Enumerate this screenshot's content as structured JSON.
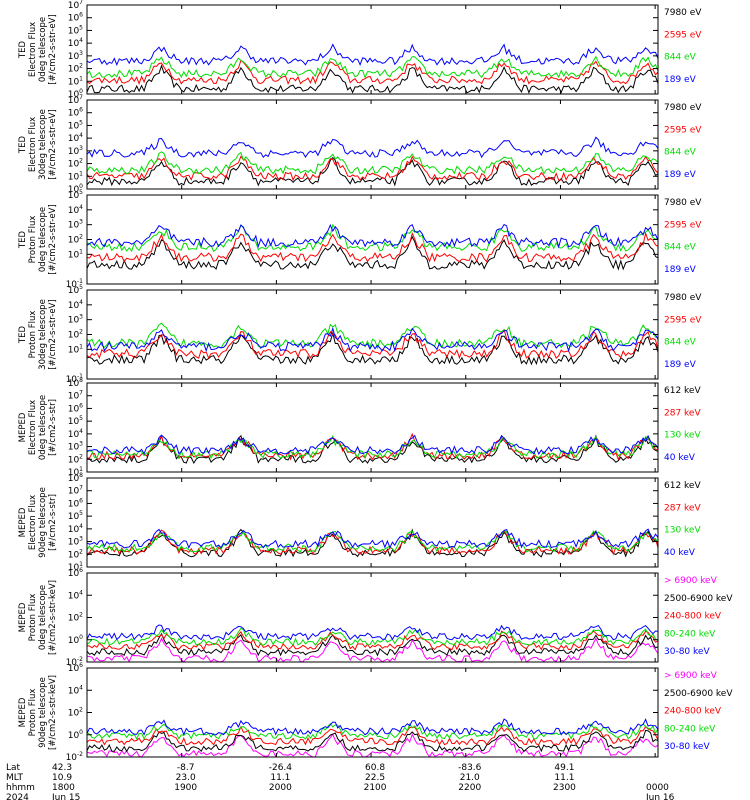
{
  "chart_data": {
    "type": "line",
    "time_axis": {
      "start": "1800",
      "end": "0000",
      "ticks": [
        "1800",
        "1900",
        "2000",
        "2100",
        "2200",
        "2300",
        "0000"
      ],
      "rows": [
        {
          "label": "Lat",
          "values": [
            "42.3",
            "-8.7",
            "-26.4",
            "60.8",
            "-83.6",
            "49.1",
            ""
          ]
        },
        {
          "label": "MLT",
          "values": [
            "10.9",
            "23.0",
            "11.1",
            "22.5",
            "21.0",
            "11.1",
            ""
          ]
        },
        {
          "label": "hhmm",
          "values": [
            "1800",
            "1900",
            "2000",
            "2100",
            "2200",
            "2300",
            "0000"
          ]
        },
        {
          "label": "2024",
          "values": [
            "Jun 15",
            "",
            "",
            "",
            "",
            "",
            "Jun 16"
          ]
        }
      ]
    },
    "panels": [
      {
        "ylabel": [
          "TED",
          "Electron Flux",
          "0deg telescope",
          "[#/cm2-s-str-eV]"
        ],
        "ylog": true,
        "ylim_exp": [
          0,
          7
        ],
        "yticks": [
          {
            "e": 0,
            "t": "10"
          },
          {
            "e": 1,
            "t": "10"
          },
          {
            "e": 2,
            "t": "10"
          },
          {
            "e": 3,
            "t": "10"
          },
          {
            "e": 4,
            "t": "10"
          },
          {
            "e": 5,
            "t": "10"
          },
          {
            "e": 6,
            "t": "10"
          },
          {
            "e": 7,
            "t": "10"
          }
        ],
        "series": [
          {
            "name": "7980 eV",
            "color": "#000000",
            "level": 0.4
          },
          {
            "name": "2595 eV",
            "color": "#ff0000",
            "level": 1.1
          },
          {
            "name": "844 eV",
            "color": "#00dd00",
            "level": 1.6
          },
          {
            "name": "189 eV",
            "color": "#0000ff",
            "level": 2.6
          }
        ]
      },
      {
        "ylabel": [
          "TED",
          "Electron Flux",
          "30deg telescope",
          "[#/cm2-s-str-eV]"
        ],
        "ylog": true,
        "ylim_exp": [
          0,
          7
        ],
        "yticks": [
          {
            "e": 0,
            "t": "10"
          },
          {
            "e": 1,
            "t": "10"
          },
          {
            "e": 2,
            "t": "10"
          },
          {
            "e": 3,
            "t": "10"
          },
          {
            "e": 4,
            "t": "10"
          },
          {
            "e": 5,
            "t": "10"
          },
          {
            "e": 6,
            "t": "10"
          },
          {
            "e": 7,
            "t": "10"
          }
        ],
        "series": [
          {
            "name": "7980 eV",
            "color": "#000000",
            "level": 0.6
          },
          {
            "name": "2595 eV",
            "color": "#ff0000",
            "level": 1.0
          },
          {
            "name": "844 eV",
            "color": "#00dd00",
            "level": 1.5
          },
          {
            "name": "189 eV",
            "color": "#0000ff",
            "level": 2.8
          }
        ]
      },
      {
        "ylabel": [
          "TED",
          "Proton Flux",
          "0deg telescope",
          "[#/cm2-s-str-eV]"
        ],
        "ylog": true,
        "ylim_exp": [
          -1,
          5
        ],
        "yticks": [
          {
            "e": -1,
            "t": "10"
          },
          {
            "e": 1,
            "t": "10"
          },
          {
            "e": 2,
            "t": "10"
          },
          {
            "e": 3,
            "t": "10"
          },
          {
            "e": 4,
            "t": "10"
          },
          {
            "e": 5,
            "t": "10"
          }
        ],
        "series": [
          {
            "name": "7980 eV",
            "color": "#000000",
            "level": 0.3
          },
          {
            "name": "2595 eV",
            "color": "#ff0000",
            "level": 0.8
          },
          {
            "name": "844 eV",
            "color": "#00dd00",
            "level": 1.5
          },
          {
            "name": "189 eV",
            "color": "#0000ff",
            "level": 1.8
          }
        ]
      },
      {
        "ylabel": [
          "TED",
          "Proton Flux",
          "30deg telescope",
          "[#/cm2-s-str-eV]"
        ],
        "ylog": true,
        "ylim_exp": [
          -1,
          5
        ],
        "yticks": [
          {
            "e": -1,
            "t": "10"
          },
          {
            "e": 1,
            "t": "10"
          },
          {
            "e": 2,
            "t": "10"
          },
          {
            "e": 3,
            "t": "10"
          },
          {
            "e": 4,
            "t": "10"
          },
          {
            "e": 5,
            "t": "10"
          }
        ],
        "series": [
          {
            "name": "7980 eV",
            "color": "#000000",
            "level": 0.3
          },
          {
            "name": "2595 eV",
            "color": "#ff0000",
            "level": 0.7
          },
          {
            "name": "844 eV",
            "color": "#00dd00",
            "level": 1.4
          },
          {
            "name": "189 eV",
            "color": "#0000ff",
            "level": 1.2
          }
        ]
      },
      {
        "ylabel": [
          "MEPED",
          "Electron Flux",
          "0deg telescope",
          "[#/cm2-s-str]"
        ],
        "ylog": true,
        "ylim_exp": [
          1,
          8
        ],
        "yticks": [
          {
            "e": 1,
            "t": "10"
          },
          {
            "e": 2,
            "t": "10"
          },
          {
            "e": 3,
            "t": "10"
          },
          {
            "e": 4,
            "t": "10"
          },
          {
            "e": 5,
            "t": "10"
          },
          {
            "e": 6,
            "t": "10"
          },
          {
            "e": 7,
            "t": "10"
          },
          {
            "e": 8,
            "t": "10"
          }
        ],
        "series": [
          {
            "name": "612 keV",
            "color": "#000000",
            "level": 2.0
          },
          {
            "name": "287 keV",
            "color": "#ff0000",
            "level": 2.3
          },
          {
            "name": "130 keV",
            "color": "#00dd00",
            "level": 2.4
          },
          {
            "name": "40 keV",
            "color": "#0000ff",
            "level": 2.7
          }
        ]
      },
      {
        "ylabel": [
          "MEPED",
          "Electron Flux",
          "90deg telescope",
          "[#/cm2-s-str]"
        ],
        "ylog": true,
        "ylim_exp": [
          1,
          8
        ],
        "yticks": [
          {
            "e": 1,
            "t": "10"
          },
          {
            "e": 2,
            "t": "10"
          },
          {
            "e": 3,
            "t": "10"
          },
          {
            "e": 4,
            "t": "10"
          },
          {
            "e": 5,
            "t": "10"
          },
          {
            "e": 6,
            "t": "10"
          },
          {
            "e": 7,
            "t": "10"
          },
          {
            "e": 8,
            "t": "10"
          }
        ],
        "series": [
          {
            "name": "612 keV",
            "color": "#000000",
            "level": 2.1
          },
          {
            "name": "287 keV",
            "color": "#ff0000",
            "level": 2.3
          },
          {
            "name": "130 keV",
            "color": "#00dd00",
            "level": 2.5
          },
          {
            "name": "40 keV",
            "color": "#0000ff",
            "level": 2.8
          }
        ]
      },
      {
        "ylabel": [
          "MEPED",
          "Proton Flux",
          "0deg telescope",
          "[#/cm2-s-str-keV]"
        ],
        "ylog": true,
        "ylim_exp": [
          -2,
          6
        ],
        "yticks": [
          {
            "e": -2,
            "t": "10"
          },
          {
            "e": 0,
            "t": "10"
          },
          {
            "e": 2,
            "t": "10"
          },
          {
            "e": 4,
            "t": "10"
          },
          {
            "e": 6,
            "t": "10"
          }
        ],
        "series": [
          {
            "name": "> 6900 keV",
            "color": "#ff00ff",
            "level": -1.7
          },
          {
            "name": "2500-6900 keV",
            "color": "#000000",
            "level": -1.1
          },
          {
            "name": "240-800 keV",
            "color": "#ff0000",
            "level": -0.6
          },
          {
            "name": "80-240 keV",
            "color": "#00dd00",
            "level": -0.2
          },
          {
            "name": "30-80 keV",
            "color": "#0000ff",
            "level": 0.3
          }
        ]
      },
      {
        "ylabel": [
          "MEPED",
          "Proton Flux",
          "90deg telescope",
          "[#/cm2-s-str-keV]"
        ],
        "ylog": true,
        "ylim_exp": [
          -2,
          6
        ],
        "yticks": [
          {
            "e": -2,
            "t": "10"
          },
          {
            "e": 0,
            "t": "10"
          },
          {
            "e": 2,
            "t": "10"
          },
          {
            "e": 4,
            "t": "10"
          },
          {
            "e": 6,
            "t": "10"
          }
        ],
        "series": [
          {
            "name": "> 6900 keV",
            "color": "#ff00ff",
            "level": -1.7
          },
          {
            "name": "2500-6900 keV",
            "color": "#000000",
            "level": -1.2
          },
          {
            "name": "240-800 keV",
            "color": "#ff0000",
            "level": -0.6
          },
          {
            "name": "80-240 keV",
            "color": "#00dd00",
            "level": -0.1
          },
          {
            "name": "30-80 keV",
            "color": "#0000ff",
            "level": 0.3
          }
        ]
      }
    ],
    "passes": [
      0.13,
      0.27,
      0.43,
      0.57,
      0.73,
      0.89,
      0.98
    ]
  }
}
